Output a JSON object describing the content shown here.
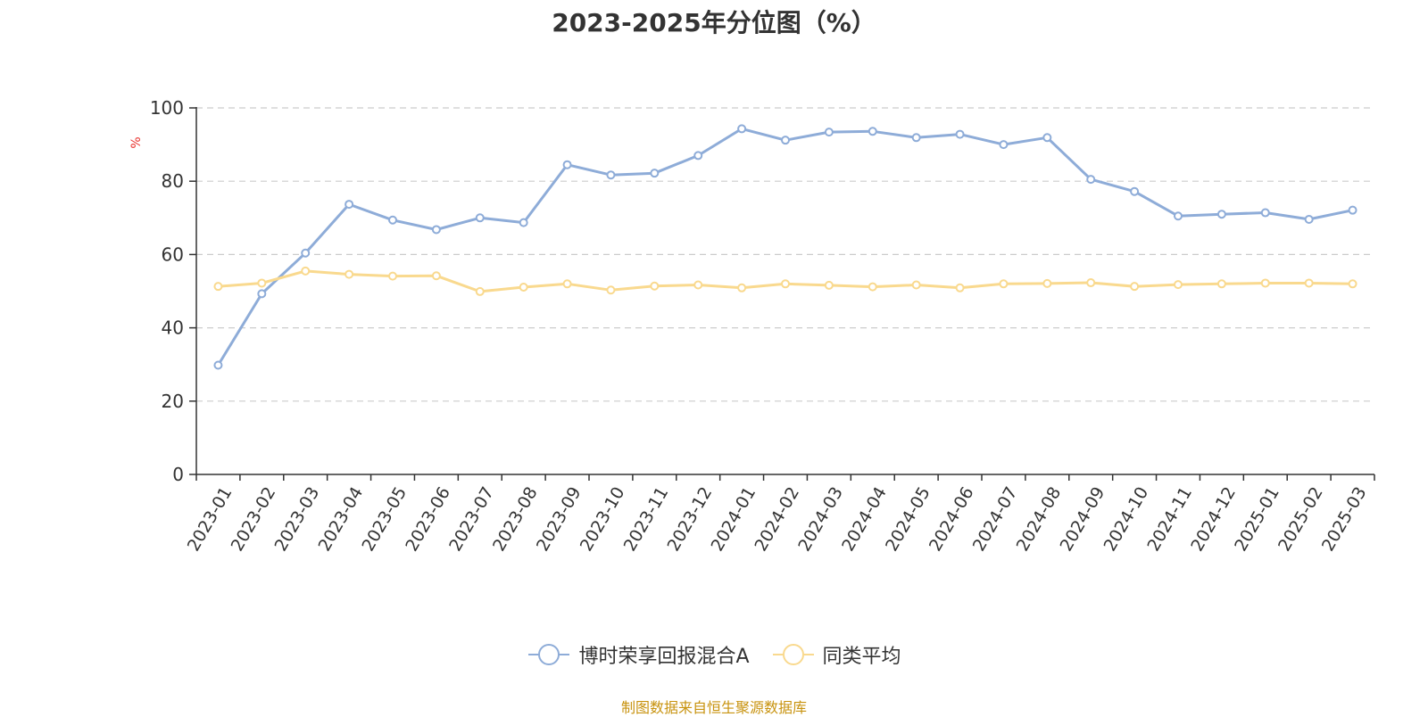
{
  "chart_data": {
    "type": "line",
    "title": "2023-2025年分位图（%）",
    "ylabel": "%",
    "ylim": [
      0,
      100
    ],
    "yticks": [
      0,
      20,
      40,
      60,
      80,
      100
    ],
    "grid": true,
    "legend_position": "bottom",
    "categories": [
      "2023-01",
      "2023-02",
      "2023-03",
      "2023-04",
      "2023-05",
      "2023-06",
      "2023-07",
      "2023-08",
      "2023-09",
      "2023-10",
      "2023-11",
      "2023-12",
      "2024-01",
      "2024-02",
      "2024-03",
      "2024-04",
      "2024-05",
      "2024-06",
      "2024-07",
      "2024-08",
      "2024-09",
      "2024-10",
      "2024-11",
      "2024-12",
      "2025-01",
      "2025-02",
      "2025-03"
    ],
    "series": [
      {
        "name": "博时荣享回报混合A",
        "color": "#8eacd8",
        "values": [
          29.8,
          49.3,
          60.4,
          73.7,
          69.4,
          66.8,
          70.0,
          68.7,
          84.5,
          81.7,
          82.2,
          87.0,
          94.3,
          91.2,
          93.4,
          93.6,
          91.9,
          92.8,
          90.0,
          91.9,
          80.5,
          77.2,
          70.5,
          71.0,
          71.4,
          69.6,
          72.1
        ]
      },
      {
        "name": "同类平均",
        "color": "#f9d98e",
        "values": [
          51.3,
          52.2,
          55.5,
          54.6,
          54.1,
          54.2,
          49.9,
          51.1,
          52.0,
          50.3,
          51.4,
          51.7,
          50.9,
          52.0,
          51.6,
          51.2,
          51.7,
          50.9,
          52.0,
          52.1,
          52.3,
          51.3,
          51.8,
          52.0,
          52.2,
          52.2,
          52.0
        ]
      }
    ]
  },
  "source_note": "制图数据来自恒生聚源数据库"
}
